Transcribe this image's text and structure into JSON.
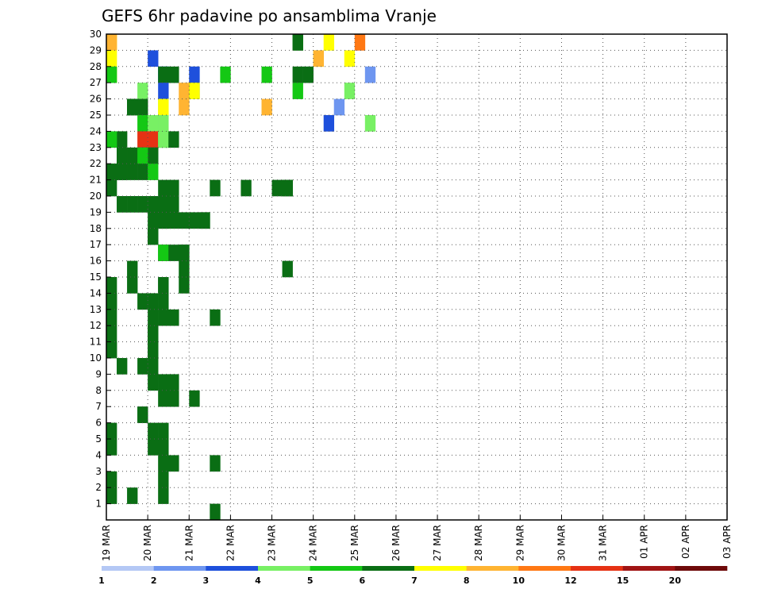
{
  "chart_data": {
    "type": "heatmap",
    "title": "GEFS 6hr padavine po ansamblima Vranje",
    "xlabel": "",
    "ylabel": "",
    "y_ticks": [
      1,
      2,
      3,
      4,
      5,
      6,
      7,
      8,
      9,
      10,
      11,
      12,
      13,
      14,
      15,
      16,
      17,
      18,
      19,
      20,
      21,
      22,
      23,
      24,
      25,
      26,
      27,
      28,
      29,
      30
    ],
    "x_range_days": [
      0,
      15
    ],
    "x_ticks": [
      {
        "day": 0,
        "label": "19 MAR"
      },
      {
        "day": 1,
        "label": "20 MAR"
      },
      {
        "day": 2,
        "label": "21 MAR"
      },
      {
        "day": 3,
        "label": "22 MAR"
      },
      {
        "day": 4,
        "label": "23 MAR"
      },
      {
        "day": 5,
        "label": "24 MAR"
      },
      {
        "day": 6,
        "label": "25 MAR"
      },
      {
        "day": 7,
        "label": "26 MAR"
      },
      {
        "day": 8,
        "label": "27 MAR"
      },
      {
        "day": 9,
        "label": "28 MAR"
      },
      {
        "day": 10,
        "label": "29 MAR"
      },
      {
        "day": 11,
        "label": "30 MAR"
      },
      {
        "day": 12,
        "label": "31 MAR"
      },
      {
        "day": 13,
        "label": "01 APR"
      },
      {
        "day": 14,
        "label": "02 APR"
      },
      {
        "day": 15,
        "label": "03 APR"
      }
    ],
    "grid": true,
    "colorbar": {
      "labels": [
        "1",
        "2",
        "3",
        "4",
        "5",
        "6",
        "7",
        "8",
        "10",
        "12",
        "15",
        "20"
      ],
      "colors": [
        "#b4c8f5",
        "#6e96f0",
        "#1e50dc",
        "#78f064",
        "#14c814",
        "#0a6e14",
        "#ffff00",
        "#ffb432",
        "#ff7814",
        "#e63214",
        "#a01414",
        "#6e0a0a"
      ]
    },
    "cells": [
      [
        30,
        6
      ],
      [
        30,
        7
      ],
      [
        30,
        184
      ],
      [
        30,
        185
      ],
      [
        30,
        216
      ],
      [
        30,
        248
      ],
      [
        29,
        42
      ],
      [
        29,
        6
      ],
      [
        29,
        206
      ],
      [
        29,
        207
      ],
      [
        29,
        236
      ],
      [
        28,
        50
      ],
      [
        28,
        51
      ],
      [
        28,
        52
      ],
      [
        28,
        6
      ],
      [
        28,
        154
      ],
      [
        28,
        55
      ],
      [
        28,
        80
      ],
      [
        28,
        82
      ],
      [
        28,
        65
      ],
      [
        28,
        114
      ],
      [
        28,
        185
      ],
      [
        28,
        195
      ],
      [
        28,
        4
      ],
      [
        28,
        251
      ],
      [
        27,
        52
      ],
      [
        27,
        33
      ],
      [
        27,
        77
      ],
      [
        27,
        233
      ],
      [
        27,
        184
      ],
      [
        27,
        85
      ],
      [
        27,
        86
      ],
      [
        26,
        53
      ],
      [
        26,
        25
      ],
      [
        26,
        157
      ],
      [
        26,
        35
      ],
      [
        26,
        56
      ],
      [
        26,
        25
      ],
      [
        26,
        77
      ],
      [
        26,
        25
      ],
      [
        26,
        221
      ],
      [
        25,
        51
      ],
      [
        25,
        52
      ],
      [
        25,
        53
      ],
      [
        25,
        212
      ],
      [
        25,
        253
      ],
      [
        25,
        34
      ],
      [
        25,
        43
      ],
      [
        24,
        15
      ],
      [
        24,
        39
      ],
      [
        24,
        49
      ],
      [
        24,
        53
      ],
      [
        24,
        54
      ],
      [
        24,
        4
      ],
      [
        24,
        53
      ],
      [
        24,
        65
      ],
      [
        23,
        15
      ],
      [
        23,
        25
      ],
      [
        23,
        30
      ],
      [
        23,
        35
      ],
      [
        23,
        45
      ],
      [
        23,
        45
      ],
      [
        23,
        35
      ],
      [
        23,
        34
      ],
      [
        23,
        15
      ],
      [
        22,
        5
      ],
      [
        22,
        15
      ],
      [
        22,
        25
      ],
      [
        22,
        35
      ],
      [
        22,
        4
      ],
      [
        22,
        44
      ],
      [
        22,
        5
      ],
      [
        22,
        15
      ],
      [
        21,
        5
      ],
      [
        21,
        55
      ],
      [
        21,
        65
      ],
      [
        21,
        105
      ],
      [
        21,
        135
      ],
      [
        21,
        165
      ],
      [
        21,
        175
      ],
      [
        21,
        175
      ],
      [
        20,
        15
      ],
      [
        20,
        25
      ],
      [
        20,
        35
      ],
      [
        20,
        45
      ],
      [
        20,
        55
      ],
      [
        20,
        55
      ],
      [
        20,
        55
      ],
      [
        20,
        65
      ],
      [
        19,
        45
      ],
      [
        19,
        55
      ],
      [
        19,
        65
      ],
      [
        19,
        75
      ],
      [
        19,
        85
      ],
      [
        19,
        95
      ],
      [
        19,
        95
      ],
      [
        19,
        55
      ],
      [
        18,
        45
      ],
      [
        18,
        45
      ],
      [
        18,
        45
      ],
      [
        18,
        45
      ],
      [
        18,
        45
      ],
      [
        18,
        45
      ],
      [
        18,
        45
      ],
      [
        17,
        55
      ],
      [
        17,
        54
      ],
      [
        17,
        65
      ],
      [
        17,
        75
      ],
      [
        17,
        75
      ],
      [
        16,
        25
      ],
      [
        16,
        75
      ],
      [
        16,
        175
      ],
      [
        15,
        5
      ],
      [
        15,
        25
      ],
      [
        15,
        55
      ],
      [
        15,
        55
      ],
      [
        15,
        75
      ],
      [
        14,
        35
      ],
      [
        14,
        45
      ],
      [
        14,
        55
      ],
      [
        14,
        5
      ],
      [
        14,
        5
      ],
      [
        13,
        45
      ],
      [
        13,
        5
      ],
      [
        13,
        55
      ],
      [
        13,
        65
      ],
      [
        13,
        105
      ],
      [
        12,
        45
      ],
      [
        12,
        45
      ],
      [
        12,
        45
      ],
      [
        12,
        5
      ],
      [
        11,
        5
      ],
      [
        11,
        45
      ],
      [
        11,
        5
      ],
      [
        11,
        45
      ],
      [
        10,
        15
      ],
      [
        10,
        35
      ],
      [
        10,
        45
      ],
      [
        9,
        45
      ],
      [
        9,
        55
      ],
      [
        9,
        65
      ],
      [
        8,
        55
      ],
      [
        8,
        65
      ],
      [
        8,
        85
      ],
      [
        7,
        35
      ],
      [
        7,
        35
      ],
      [
        6,
        45
      ],
      [
        6,
        55
      ],
      [
        6,
        5
      ],
      [
        5,
        5
      ],
      [
        5,
        45
      ],
      [
        5,
        55
      ],
      [
        5,
        55
      ],
      [
        4,
        65
      ],
      [
        4,
        55
      ],
      [
        4,
        105
      ],
      [
        3,
        5
      ],
      [
        3,
        55
      ],
      [
        2,
        5
      ],
      [
        2,
        25
      ],
      [
        2,
        55
      ],
      [
        1,
        105
      ]
    ]
  }
}
